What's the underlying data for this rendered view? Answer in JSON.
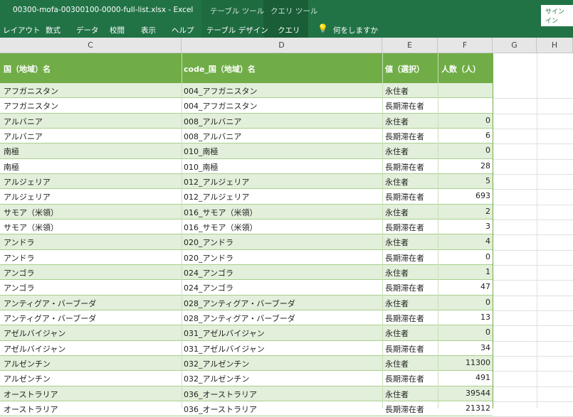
{
  "window": {
    "title": "00300-mofa-00300100-0000-full-list.xlsx  -  Excel",
    "context_table": "テーブル ツール",
    "context_query": "クエリ ツール",
    "signin": "サインイン"
  },
  "ribbon": {
    "tabs": [
      "レイアウト",
      "数式",
      "データ",
      "校閲",
      "表示",
      "ヘルプ",
      "テーブル デザイン",
      "クエリ"
    ],
    "tell_me": "何をしますか"
  },
  "columns": [
    "C",
    "D",
    "E",
    "F",
    "G",
    "H"
  ],
  "table": {
    "headers": [
      "国（地域）名",
      "code_国（地域）名",
      "値（選択）",
      "人数（人）"
    ],
    "rows": [
      [
        "アフガニスタン",
        "004_アフガニスタン",
        "永住者",
        ""
      ],
      [
        "アフガニスタン",
        "004_アフガニスタン",
        "長期滞在者",
        ""
      ],
      [
        "アルバニア",
        "008_アルバニア",
        "永住者",
        "0"
      ],
      [
        "アルバニア",
        "008_アルバニア",
        "長期滞在者",
        "6"
      ],
      [
        "南極",
        "010_南極",
        "永住者",
        "0"
      ],
      [
        "南極",
        "010_南極",
        "長期滞在者",
        "28"
      ],
      [
        "アルジェリア",
        "012_アルジェリア",
        "永住者",
        "5"
      ],
      [
        "アルジェリア",
        "012_アルジェリア",
        "長期滞在者",
        "693"
      ],
      [
        "サモア（米領）",
        "016_サモア（米領）",
        "永住者",
        "2"
      ],
      [
        "サモア（米領）",
        "016_サモア（米領）",
        "長期滞在者",
        "3"
      ],
      [
        "アンドラ",
        "020_アンドラ",
        "永住者",
        "4"
      ],
      [
        "アンドラ",
        "020_アンドラ",
        "長期滞在者",
        "0"
      ],
      [
        "アンゴラ",
        "024_アンゴラ",
        "永住者",
        "1"
      ],
      [
        "アンゴラ",
        "024_アンゴラ",
        "長期滞在者",
        "47"
      ],
      [
        "アンティグア・バーブーダ",
        "028_アンティグア・バーブーダ",
        "永住者",
        "0"
      ],
      [
        "アンティグア・バーブーダ",
        "028_アンティグア・バーブーダ",
        "長期滞在者",
        "13"
      ],
      [
        "アゼルバイジャン",
        "031_アゼルバイジャン",
        "永住者",
        "0"
      ],
      [
        "アゼルバイジャン",
        "031_アゼルバイジャン",
        "長期滞在者",
        "34"
      ],
      [
        "アルゼンチン",
        "032_アルゼンチン",
        "永住者",
        "11300"
      ],
      [
        "アルゼンチン",
        "032_アルゼンチン",
        "長期滞在者",
        "491"
      ],
      [
        "オーストラリア",
        "036_オーストラリア",
        "永住者",
        "39544"
      ],
      [
        "オーストラリア",
        "036_オーストラリア",
        "長期滞在者",
        "21312"
      ]
    ]
  }
}
